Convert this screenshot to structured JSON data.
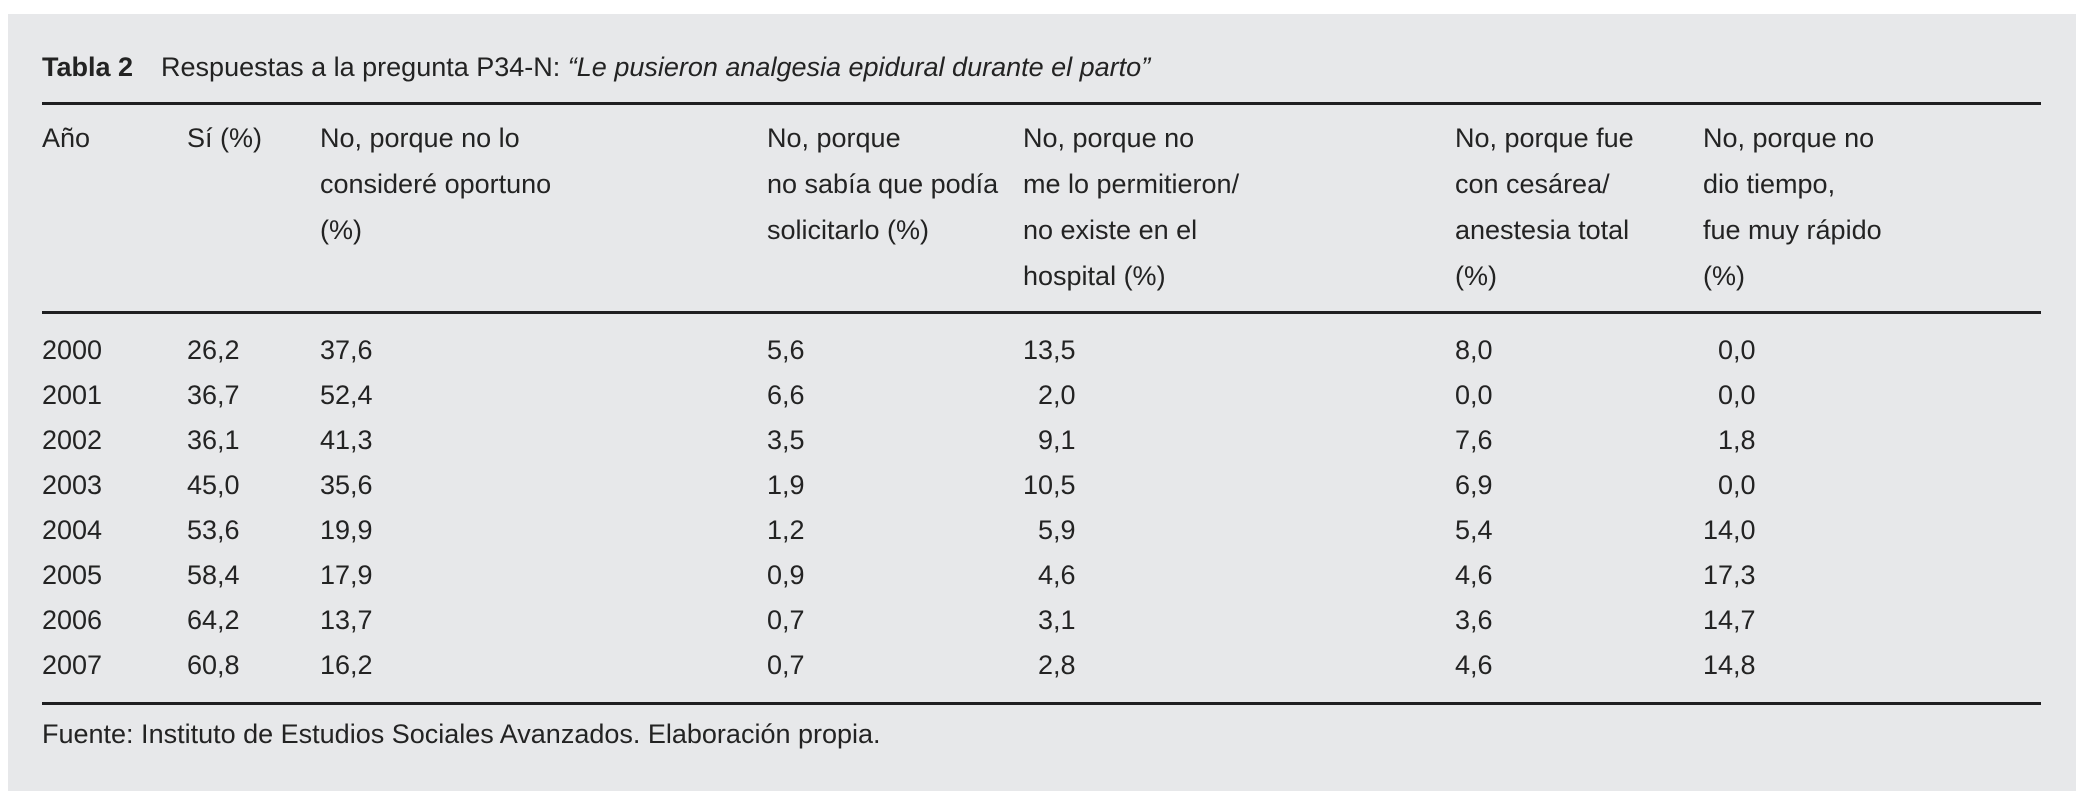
{
  "page": {
    "background_color": "#ffffff",
    "panel_color": "#e7e8ea",
    "text_color": "#232323",
    "rule_color": "#1f1f21"
  },
  "table": {
    "label": "Tabla 2",
    "caption": "Respuestas a la pregunta P34-N: ",
    "caption_quoted_italic": "“Le pusieron analgesia epidural durante el parto”",
    "columns": [
      {
        "header": "Año"
      },
      {
        "header": "Sí (%)"
      },
      {
        "header": "No, porque no lo\nconsideré oportuno\n(%)"
      },
      {
        "header": "No, porque\nno sabía que podía\nsolicitarlo (%)"
      },
      {
        "header": "No, porque no\nme lo permitieron/\nno existe en el\nhospital (%)"
      },
      {
        "header": "No, porque fue\ncon cesárea/\nanestesia total\n(%)"
      },
      {
        "header": "No, porque no\ndio tiempo,\nfue muy rápido\n(%)"
      }
    ],
    "rows": [
      {
        "year": "2000",
        "values": [
          "26,2",
          "37,6",
          "5,6",
          "13,5",
          "8,0",
          "0,0"
        ]
      },
      {
        "year": "2001",
        "values": [
          "36,7",
          "52,4",
          "6,6",
          "2,0",
          "0,0",
          "0,0"
        ]
      },
      {
        "year": "2002",
        "values": [
          "36,1",
          "41,3",
          "3,5",
          "9,1",
          "7,6",
          "1,8"
        ]
      },
      {
        "year": "2003",
        "values": [
          "45,0",
          "35,6",
          "1,9",
          "10,5",
          "6,9",
          "0,0"
        ]
      },
      {
        "year": "2004",
        "values": [
          "53,6",
          "19,9",
          "1,2",
          "5,9",
          "5,4",
          "14,0"
        ]
      },
      {
        "year": "2005",
        "values": [
          "58,4",
          "17,9",
          "0,9",
          "4,6",
          "4,6",
          "17,3"
        ]
      },
      {
        "year": "2006",
        "values": [
          "64,2",
          "13,7",
          "0,7",
          "3,1",
          "3,6",
          "14,7"
        ]
      },
      {
        "year": "2007",
        "values": [
          "60,8",
          "16,2",
          "0,7",
          "2,8",
          "4,6",
          "14,8"
        ]
      }
    ],
    "source": "Fuente: Instituto de Estudios Sociales Avanzados. Elaboración propia."
  },
  "chart_data": {
    "type": "table",
    "title": "Tabla 2. Respuestas a la pregunta P34-N: “Le pusieron analgesia epidural durante el parto”",
    "columns": [
      "Año",
      "Sí (%)",
      "No, porque no lo consideré oportuno (%)",
      "No, porque no sabía que podía solicitarlo (%)",
      "No, porque no me lo permitieron/no existe en el hospital (%)",
      "No, porque fue con cesárea/anestesia total (%)",
      "No, porque no dio tiempo, fue muy rápido (%)"
    ],
    "rows": [
      [
        "2000",
        26.2,
        37.6,
        5.6,
        13.5,
        8.0,
        0.0
      ],
      [
        "2001",
        36.7,
        52.4,
        6.6,
        2.0,
        0.0,
        0.0
      ],
      [
        "2002",
        36.1,
        41.3,
        3.5,
        9.1,
        7.6,
        1.8
      ],
      [
        "2003",
        45.0,
        35.6,
        1.9,
        10.5,
        6.9,
        0.0
      ],
      [
        "2004",
        53.6,
        19.9,
        1.2,
        5.9,
        5.4,
        14.0
      ],
      [
        "2005",
        58.4,
        17.9,
        0.9,
        4.6,
        4.6,
        17.3
      ],
      [
        "2006",
        64.2,
        13.7,
        0.7,
        3.1,
        3.6,
        14.7
      ],
      [
        "2007",
        60.8,
        16.2,
        0.7,
        2.8,
        4.6,
        14.8
      ]
    ],
    "source": "Fuente: Instituto de Estudios Sociales Avanzados. Elaboración propia."
  }
}
